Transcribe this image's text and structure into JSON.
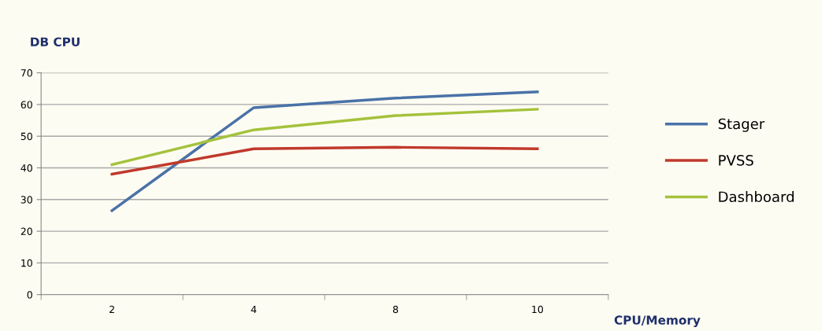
{
  "chart_data": {
    "type": "line",
    "ylabel": "DB CPU",
    "xlabel": "CPU/Memory",
    "categories": [
      "2",
      "4",
      "8",
      "10"
    ],
    "series": [
      {
        "name": "Stager",
        "color": "#4a72a8",
        "values": [
          26.5,
          59,
          62,
          64
        ]
      },
      {
        "name": "PVSS",
        "color": "#c0392b",
        "values": [
          38,
          46,
          46.5,
          46
        ]
      },
      {
        "name": "Dashboard",
        "color": "#a4c23c",
        "values": [
          41,
          52,
          56.5,
          58.5
        ]
      }
    ],
    "ylim": [
      0,
      70
    ],
    "yticks": [
      0,
      10,
      20,
      30,
      40,
      50,
      60,
      70
    ],
    "grid": "y",
    "legend": "right",
    "marker": "none",
    "line_style": "solid"
  }
}
